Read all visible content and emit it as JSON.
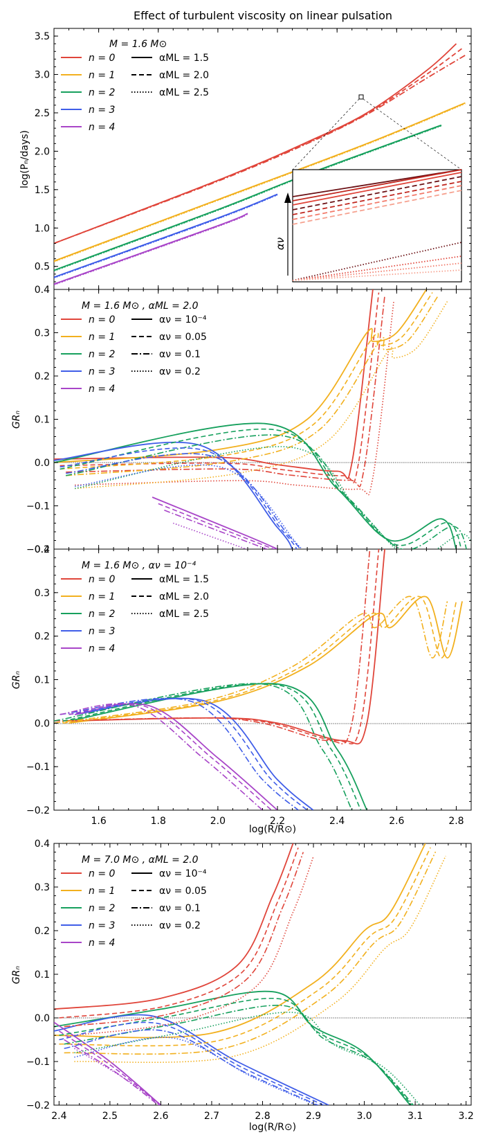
{
  "figure": {
    "title": "Effect of turbulent viscosity on linear pulsation",
    "ylabel_period": "log(Pₙ/days)",
    "ylabel_gr": "GRₙ",
    "xlabel": "log(R/R⊙)",
    "inset_arrow_label": "αν"
  },
  "chart_data": [
    {
      "type": "line",
      "panel": "a",
      "title": "Effect of turbulent viscosity on linear pulsation",
      "annotation": "M = 1.6 M⊙",
      "xlabel": "log(R/R⊙)",
      "ylabel": "log(Pₙ/days)",
      "xlim": [
        1.45,
        2.85
      ],
      "ylim": [
        0.2,
        3.6
      ],
      "yticks": [
        "0.5",
        "1.0",
        "1.5",
        "2.0",
        "2.5",
        "3.0",
        "3.5"
      ],
      "legend_modes": [
        "n = 0",
        "n = 1",
        "n = 2",
        "n = 3",
        "n = 4"
      ],
      "legend_styles": [
        "αML = 1.5",
        "αML = 2.0",
        "αML = 2.5"
      ],
      "series": [
        {
          "name": "n = 0",
          "style": "αML = 1.5",
          "x": [
            1.45,
            2.0,
            2.3,
            2.5,
            2.7,
            2.8
          ],
          "y": [
            0.8,
            1.62,
            2.12,
            2.5,
            3.05,
            3.4
          ]
        },
        {
          "name": "n = 0",
          "style": "αML = 2.0",
          "x": [
            1.45,
            2.0,
            2.3,
            2.5,
            2.7,
            2.82
          ],
          "y": [
            0.8,
            1.62,
            2.11,
            2.49,
            3.0,
            3.34
          ]
        },
        {
          "name": "n = 0",
          "style": "αML = 2.5",
          "x": [
            1.45,
            2.0,
            2.3,
            2.5,
            2.7,
            2.83
          ],
          "y": [
            0.8,
            1.61,
            2.1,
            2.48,
            2.95,
            3.25
          ]
        },
        {
          "name": "n = 1",
          "x": [
            1.45,
            2.0,
            2.5,
            2.83
          ],
          "y": [
            0.57,
            1.37,
            2.1,
            2.63
          ]
        },
        {
          "name": "n = 2",
          "x": [
            1.45,
            2.0,
            2.3,
            2.75
          ],
          "y": [
            0.45,
            1.24,
            1.7,
            2.34
          ]
        },
        {
          "name": "n = 3",
          "x": [
            1.45,
            2.0,
            2.2
          ],
          "y": [
            0.36,
            1.13,
            1.44
          ]
        },
        {
          "name": "n = 4",
          "x": [
            1.45,
            2.0,
            2.1
          ],
          "y": [
            0.27,
            1.03,
            1.19
          ]
        }
      ]
    },
    {
      "type": "line",
      "panel": "b",
      "annotation": "M = 1.6 M⊙ , αML = 2.0",
      "ylabel": "GRₙ",
      "xlim": [
        1.45,
        2.85
      ],
      "ylim": [
        -0.2,
        0.4
      ],
      "yticks": [
        "−0.2",
        "−0.1",
        "0.0",
        "0.1",
        "0.2",
        "0.3",
        "0.4"
      ],
      "legend_modes": [
        "n = 0",
        "n = 1",
        "n = 2",
        "n = 3",
        "n = 4"
      ],
      "legend_styles": [
        "αν = 10⁻⁴",
        "αν = 0.05",
        "αν = 0.1",
        "αν = 0.2"
      ],
      "series": [
        {
          "name": "n = 0",
          "style": "αν = 10⁻⁴",
          "x": [
            1.45,
            2.0,
            2.2,
            2.4,
            2.45,
            2.52
          ],
          "y": [
            0.008,
            0.012,
            -0.005,
            -0.02,
            0.0,
            0.4
          ]
        },
        {
          "name": "n = 1",
          "style": "αν = 10⁻⁴",
          "x": [
            1.45,
            2.0,
            2.3,
            2.5,
            2.52,
            2.6,
            2.7
          ],
          "y": [
            0.0,
            0.03,
            0.1,
            0.3,
            0.28,
            0.3,
            0.4
          ]
        },
        {
          "name": "n = 2",
          "style": "αν = 10⁻⁴",
          "x": [
            1.45,
            2.16,
            2.4,
            2.58,
            2.75,
            2.8
          ],
          "y": [
            0.0,
            0.09,
            -0.06,
            -0.18,
            -0.13,
            -0.2
          ]
        },
        {
          "name": "n = 3",
          "style": "αν = 10⁻⁴",
          "x": [
            1.45,
            1.94,
            2.2,
            2.25
          ],
          "y": [
            0.005,
            0.04,
            -0.15,
            -0.2
          ]
        },
        {
          "name": "n = 4",
          "style": "αν = 10⁻⁴",
          "x": [
            1.78,
            2.1,
            2.2
          ],
          "y": [
            -0.08,
            -0.17,
            -0.2
          ]
        }
      ]
    },
    {
      "type": "line",
      "panel": "c",
      "annotation": "M = 1.6 M⊙ , αν = 10⁻⁴",
      "xlabel": "log(R/R⊙)",
      "ylabel": "GRₙ",
      "xlim": [
        1.45,
        2.85
      ],
      "ylim": [
        -0.2,
        0.4
      ],
      "xticks": [
        "1.6",
        "1.8",
        "2.0",
        "2.2",
        "2.4",
        "2.6",
        "2.8"
      ],
      "yticks": [
        "−0.2",
        "−0.1",
        "0.0",
        "0.1",
        "0.2",
        "0.3",
        "0.4"
      ],
      "legend_modes": [
        "n = 0",
        "n = 1",
        "n = 2",
        "n = 3",
        "n = 4"
      ],
      "legend_styles": [
        "αML = 1.5",
        "αML = 2.0",
        "αML = 2.5"
      ],
      "series": [
        {
          "name": "n = 0",
          "style": "αML = 1.5",
          "x": [
            1.5,
            2.0,
            2.2,
            2.42,
            2.5,
            2.56
          ],
          "y": [
            0.005,
            0.012,
            0.0,
            -0.04,
            0.0,
            0.4
          ]
        },
        {
          "name": "n = 1",
          "style": "αML = 1.5",
          "x": [
            1.5,
            2.0,
            2.3,
            2.53,
            2.58,
            2.7,
            2.77,
            2.82
          ],
          "y": [
            0.0,
            0.05,
            0.13,
            0.25,
            0.22,
            0.29,
            0.15,
            0.28
          ]
        },
        {
          "name": "n = 2",
          "style": "αML = 1.5",
          "x": [
            1.5,
            2.2,
            2.4,
            2.5
          ],
          "y": [
            0.005,
            0.09,
            -0.06,
            -0.2
          ]
        },
        {
          "name": "n = 3",
          "style": "αML = 1.5",
          "x": [
            1.52,
            1.96,
            2.2,
            2.32
          ],
          "y": [
            0.02,
            0.05,
            -0.13,
            -0.2
          ]
        },
        {
          "name": "n = 4",
          "style": "αML = 1.5",
          "x": [
            1.52,
            1.77,
            2.0,
            2.2
          ],
          "y": [
            0.02,
            0.04,
            -0.08,
            -0.2
          ]
        }
      ]
    },
    {
      "type": "line",
      "panel": "d",
      "annotation": "M = 7.0 M⊙ , αML = 2.0",
      "xlabel": "log(R/R⊙)",
      "ylabel": "GRₙ",
      "xlim": [
        2.39,
        3.21
      ],
      "ylim": [
        -0.2,
        0.4
      ],
      "xticks": [
        "2.4",
        "2.5",
        "2.6",
        "2.7",
        "2.8",
        "2.9",
        "3.0",
        "3.1",
        "3.2"
      ],
      "yticks": [
        "−0.2",
        "−0.1",
        "0.0",
        "0.1",
        "0.2",
        "0.3",
        "0.4"
      ],
      "legend_modes": [
        "n = 0",
        "n = 1",
        "n = 2",
        "n = 3",
        "n = 4"
      ],
      "legend_styles": [
        "αν = 10⁻⁴",
        "αν = 0.05",
        "αν = 0.1",
        "αν = 0.2"
      ],
      "series": [
        {
          "name": "n = 0",
          "style": "αν = 10⁻⁴",
          "x": [
            2.39,
            2.6,
            2.75,
            2.82,
            2.86
          ],
          "y": [
            0.02,
            0.045,
            0.12,
            0.28,
            0.4
          ]
        },
        {
          "name": "n = 1",
          "style": "αν = 10⁻⁴",
          "x": [
            2.39,
            2.7,
            2.9,
            3.0,
            3.05,
            3.12
          ],
          "y": [
            -0.04,
            -0.035,
            0.08,
            0.2,
            0.24,
            0.4
          ]
        },
        {
          "name": "n = 2",
          "style": "αν = 10⁻⁴",
          "x": [
            2.39,
            2.6,
            2.82,
            2.9,
            3.0,
            3.09
          ],
          "y": [
            -0.02,
            0.02,
            0.06,
            -0.02,
            -0.08,
            -0.2
          ]
        },
        {
          "name": "n = 3",
          "style": "αν = 10⁻⁴",
          "x": [
            2.39,
            2.58,
            2.75,
            2.93
          ],
          "y": [
            -0.03,
            0.005,
            -0.1,
            -0.2
          ]
        },
        {
          "name": "n = 4",
          "style": "αν = 10⁻⁴",
          "x": [
            2.39,
            2.5,
            2.6
          ],
          "y": [
            -0.01,
            -0.1,
            -0.2
          ]
        }
      ]
    }
  ]
}
